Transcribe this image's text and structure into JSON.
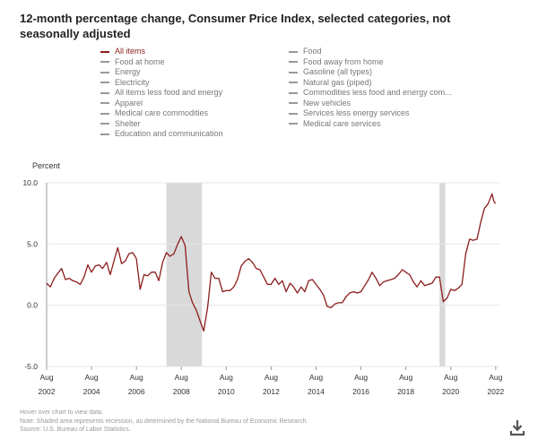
{
  "header": {
    "title": "12-month percentage change, Consumer Price Index, selected categories, not seasonally adjusted"
  },
  "legend": {
    "col1": [
      {
        "label": "All items",
        "active": true
      },
      {
        "label": "Food at home",
        "active": false
      },
      {
        "label": "Energy",
        "active": false
      },
      {
        "label": "Electricity",
        "active": false
      },
      {
        "label": "All items less food and energy",
        "active": false
      },
      {
        "label": "Apparel",
        "active": false
      },
      {
        "label": "Medical care commodities",
        "active": false
      },
      {
        "label": "Shelter",
        "active": false
      },
      {
        "label": "Education and communication",
        "active": false
      }
    ],
    "col2": [
      {
        "label": "Food",
        "active": false
      },
      {
        "label": "Food away from home",
        "active": false
      },
      {
        "label": "Gasoline (all types)",
        "active": false
      },
      {
        "label": "Natural gas (piped)",
        "active": false
      },
      {
        "label": "Commodities less food and energy com...",
        "active": false
      },
      {
        "label": "New vehicles",
        "active": false
      },
      {
        "label": "Services less energy services",
        "active": false
      },
      {
        "label": "Medical care services",
        "active": false
      }
    ]
  },
  "footnotes": {
    "hover": "Hover over chart to view data.",
    "note": "Note: Shaded area represents recession, as determined by the National Bureau of Economic Research.",
    "source": "Source: U.S. Bureau of Labor Statistics."
  },
  "download": {
    "icon": "download-icon"
  },
  "colors": {
    "series": "#8b1c1c",
    "recession": "#d9d9d9",
    "grid": "#e6e6e6",
    "axis": "#999999"
  },
  "chart_data": {
    "type": "line",
    "title": "12-month percentage change, Consumer Price Index, selected categories, not seasonally adjusted",
    "ylabel": "Percent",
    "xlabel": "",
    "ylim": [
      -5.0,
      10.0
    ],
    "xlim": [
      2002.583,
      2022.75
    ],
    "yticks": [
      {
        "value": 10.0,
        "label": "10.0"
      },
      {
        "value": 5.0,
        "label": "5.0"
      },
      {
        "value": 0.0,
        "label": "0.0"
      },
      {
        "value": -5.0,
        "label": "-5.0"
      }
    ],
    "xticks": [
      {
        "value": 2002.583,
        "month": "Aug",
        "year": "2002"
      },
      {
        "value": 2004.583,
        "month": "Aug",
        "year": "2004"
      },
      {
        "value": 2006.583,
        "month": "Aug",
        "year": "2006"
      },
      {
        "value": 2008.583,
        "month": "Aug",
        "year": "2008"
      },
      {
        "value": 2010.583,
        "month": "Aug",
        "year": "2010"
      },
      {
        "value": 2012.583,
        "month": "Aug",
        "year": "2012"
      },
      {
        "value": 2014.583,
        "month": "Aug",
        "year": "2014"
      },
      {
        "value": 2016.583,
        "month": "Aug",
        "year": "2016"
      },
      {
        "value": 2018.583,
        "month": "Aug",
        "year": "2018"
      },
      {
        "value": 2020.583,
        "month": "Aug",
        "year": "2020"
      },
      {
        "value": 2022.583,
        "month": "Aug",
        "year": "2022"
      }
    ],
    "grid": true,
    "recessions": [
      {
        "start": 2007.917,
        "end": 2009.5
      },
      {
        "start": 2020.083,
        "end": 2020.333
      }
    ],
    "series": [
      {
        "name": "All items",
        "points": [
          [
            2002.58,
            1.8
          ],
          [
            2002.75,
            1.5
          ],
          [
            2002.92,
            2.2
          ],
          [
            2003.08,
            2.6
          ],
          [
            2003.25,
            3.0
          ],
          [
            2003.42,
            2.1
          ],
          [
            2003.58,
            2.2
          ],
          [
            2003.75,
            2.0
          ],
          [
            2003.92,
            1.9
          ],
          [
            2004.08,
            1.7
          ],
          [
            2004.25,
            2.3
          ],
          [
            2004.42,
            3.3
          ],
          [
            2004.58,
            2.7
          ],
          [
            2004.75,
            3.2
          ],
          [
            2004.92,
            3.3
          ],
          [
            2005.08,
            3.0
          ],
          [
            2005.25,
            3.5
          ],
          [
            2005.42,
            2.5
          ],
          [
            2005.58,
            3.6
          ],
          [
            2005.75,
            4.7
          ],
          [
            2005.92,
            3.4
          ],
          [
            2006.08,
            3.6
          ],
          [
            2006.25,
            4.2
          ],
          [
            2006.42,
            4.3
          ],
          [
            2006.58,
            3.8
          ],
          [
            2006.75,
            1.3
          ],
          [
            2006.92,
            2.5
          ],
          [
            2007.08,
            2.4
          ],
          [
            2007.25,
            2.7
          ],
          [
            2007.42,
            2.7
          ],
          [
            2007.58,
            2.0
          ],
          [
            2007.75,
            3.5
          ],
          [
            2007.92,
            4.3
          ],
          [
            2008.08,
            4.0
          ],
          [
            2008.25,
            4.2
          ],
          [
            2008.42,
            5.0
          ],
          [
            2008.58,
            5.6
          ],
          [
            2008.75,
            4.9
          ],
          [
            2008.92,
            1.1
          ],
          [
            2009.08,
            0.2
          ],
          [
            2009.25,
            -0.4
          ],
          [
            2009.42,
            -1.3
          ],
          [
            2009.58,
            -2.1
          ],
          [
            2009.75,
            -0.2
          ],
          [
            2009.92,
            2.7
          ],
          [
            2010.08,
            2.2
          ],
          [
            2010.25,
            2.2
          ],
          [
            2010.42,
            1.1
          ],
          [
            2010.58,
            1.2
          ],
          [
            2010.75,
            1.2
          ],
          [
            2010.92,
            1.5
          ],
          [
            2011.08,
            2.1
          ],
          [
            2011.25,
            3.2
          ],
          [
            2011.42,
            3.6
          ],
          [
            2011.58,
            3.8
          ],
          [
            2011.75,
            3.5
          ],
          [
            2011.92,
            3.0
          ],
          [
            2012.08,
            2.9
          ],
          [
            2012.25,
            2.3
          ],
          [
            2012.42,
            1.7
          ],
          [
            2012.58,
            1.7
          ],
          [
            2012.75,
            2.2
          ],
          [
            2012.92,
            1.7
          ],
          [
            2013.08,
            2.0
          ],
          [
            2013.25,
            1.1
          ],
          [
            2013.42,
            1.8
          ],
          [
            2013.58,
            1.5
          ],
          [
            2013.75,
            1.0
          ],
          [
            2013.92,
            1.5
          ],
          [
            2014.08,
            1.1
          ],
          [
            2014.25,
            2.0
          ],
          [
            2014.42,
            2.1
          ],
          [
            2014.58,
            1.7
          ],
          [
            2014.75,
            1.3
          ],
          [
            2014.92,
            0.8
          ],
          [
            2015.08,
            -0.1
          ],
          [
            2015.25,
            -0.2
          ],
          [
            2015.42,
            0.1
          ],
          [
            2015.58,
            0.2
          ],
          [
            2015.75,
            0.2
          ],
          [
            2015.92,
            0.7
          ],
          [
            2016.08,
            1.0
          ],
          [
            2016.25,
            1.1
          ],
          [
            2016.42,
            1.0
          ],
          [
            2016.58,
            1.1
          ],
          [
            2016.75,
            1.6
          ],
          [
            2016.92,
            2.1
          ],
          [
            2017.08,
            2.7
          ],
          [
            2017.25,
            2.2
          ],
          [
            2017.42,
            1.6
          ],
          [
            2017.58,
            1.9
          ],
          [
            2017.75,
            2.0
          ],
          [
            2017.92,
            2.1
          ],
          [
            2018.08,
            2.2
          ],
          [
            2018.25,
            2.5
          ],
          [
            2018.42,
            2.9
          ],
          [
            2018.58,
            2.7
          ],
          [
            2018.75,
            2.5
          ],
          [
            2018.92,
            1.9
          ],
          [
            2019.08,
            1.5
          ],
          [
            2019.25,
            2.0
          ],
          [
            2019.42,
            1.6
          ],
          [
            2019.58,
            1.7
          ],
          [
            2019.75,
            1.8
          ],
          [
            2019.92,
            2.3
          ],
          [
            2020.08,
            2.3
          ],
          [
            2020.25,
            0.3
          ],
          [
            2020.42,
            0.6
          ],
          [
            2020.58,
            1.3
          ],
          [
            2020.75,
            1.2
          ],
          [
            2020.92,
            1.4
          ],
          [
            2021.08,
            1.7
          ],
          [
            2021.25,
            4.2
          ],
          [
            2021.42,
            5.4
          ],
          [
            2021.58,
            5.3
          ],
          [
            2021.75,
            5.4
          ],
          [
            2021.92,
            6.8
          ],
          [
            2022.08,
            7.9
          ],
          [
            2022.25,
            8.3
          ],
          [
            2022.42,
            9.1
          ],
          [
            2022.5,
            8.5
          ],
          [
            2022.58,
            8.3
          ]
        ]
      }
    ]
  }
}
